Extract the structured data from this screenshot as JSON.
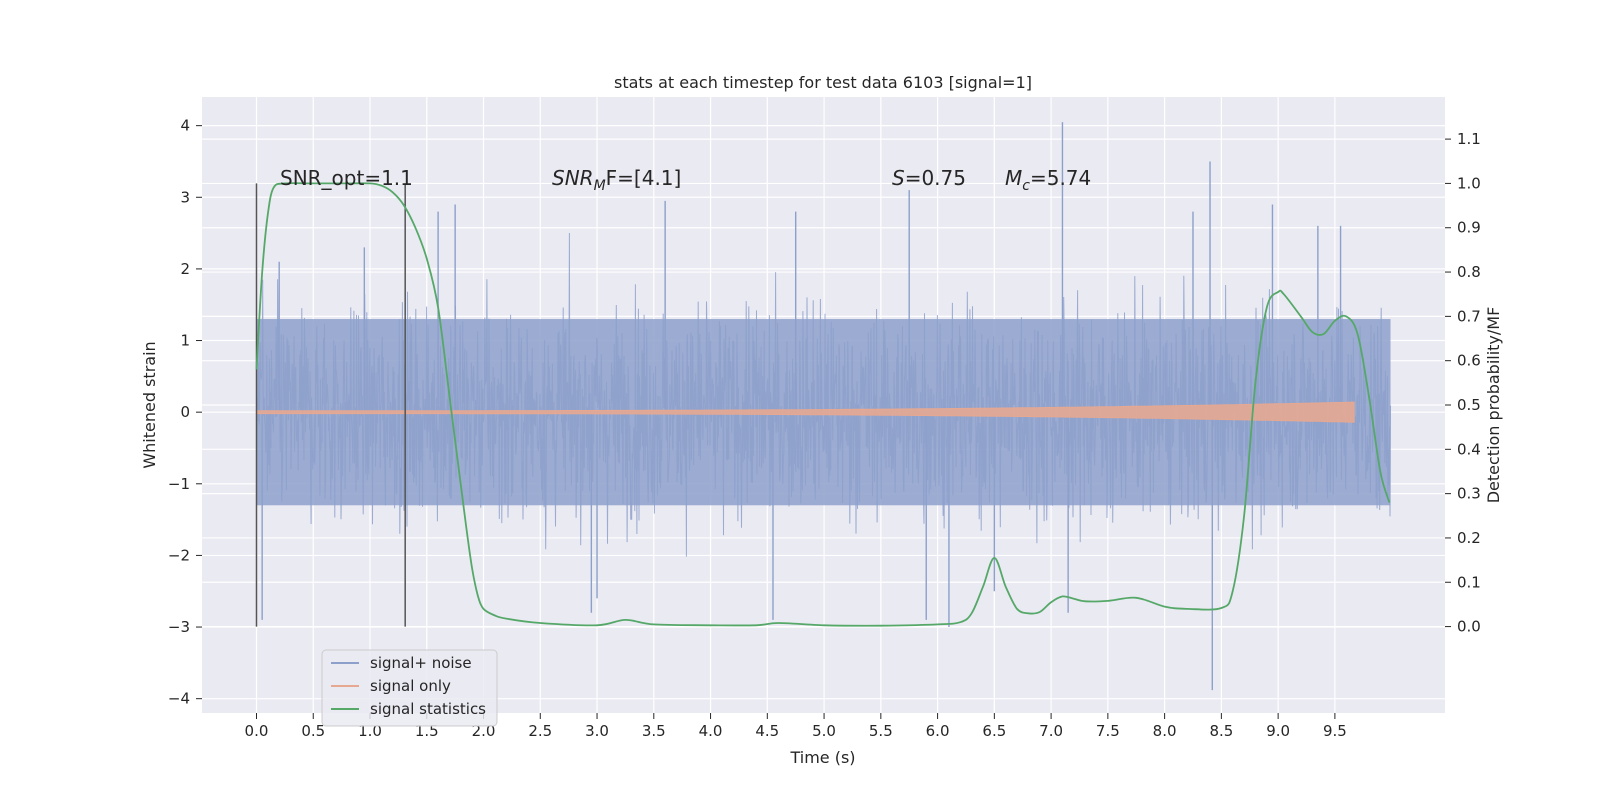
{
  "chart_data": {
    "type": "line",
    "title": "stats at each timestep for test data 6103 [signal=1]",
    "xlabel": "Time (s)",
    "ylabel_left": "Whitened strain",
    "ylabel_right": "Detection probability/MF",
    "xlim": [
      -0.48,
      10.47
    ],
    "ylim_left": [
      -4.2,
      4.4
    ],
    "ylim_right": [
      -0.195,
      1.195
    ],
    "x_ticks": [
      "0.0",
      "0.5",
      "1.0",
      "1.5",
      "2.0",
      "2.5",
      "3.0",
      "3.5",
      "4.0",
      "4.5",
      "5.0",
      "5.5",
      "6.0",
      "6.5",
      "7.0",
      "7.5",
      "8.0",
      "8.5",
      "9.0",
      "9.5"
    ],
    "y_left_ticks": [
      "4",
      "3",
      "2",
      "1",
      "0",
      "−1",
      "−2",
      "−3",
      "−4"
    ],
    "y_right_ticks": [
      "1.1",
      "1.0",
      "0.9",
      "0.8",
      "0.7",
      "0.6",
      "0.5",
      "0.4",
      "0.3",
      "0.2",
      "0.1",
      "0.0"
    ],
    "grid": true,
    "legend_position": "lower-left",
    "series": [
      {
        "name": "signal+ noise",
        "color": "#8da0cb",
        "axis": "left",
        "x_range": [
          0.0,
          9.99
        ],
        "typical_amplitude": 1.3,
        "peak_max": 4.05,
        "peak_min": -3.88
      },
      {
        "name": "signal only",
        "color": "#e6a891",
        "axis": "left",
        "x_range": [
          0.0,
          9.67
        ],
        "end_amplitude": 0.12
      },
      {
        "name": "signal statistics",
        "color": "#55a868",
        "axis": "right",
        "x": [
          0.0,
          0.05,
          0.1,
          0.15,
          0.25,
          0.5,
          0.8,
          1.0,
          1.1,
          1.2,
          1.3,
          1.4,
          1.5,
          1.6,
          1.7,
          1.75,
          1.8,
          1.85,
          1.9,
          1.95,
          2.0,
          2.1,
          2.2,
          2.5,
          3.0,
          3.25,
          3.5,
          4.0,
          4.4,
          4.6,
          5.0,
          5.5,
          6.0,
          6.2,
          6.3,
          6.4,
          6.5,
          6.6,
          6.7,
          6.8,
          6.9,
          7.0,
          7.1,
          7.2,
          7.3,
          7.5,
          7.75,
          8.0,
          8.2,
          8.5,
          8.6,
          8.7,
          8.8,
          8.9,
          9.0,
          9.05,
          9.2,
          9.3,
          9.4,
          9.5,
          9.6,
          9.7,
          9.8,
          9.9,
          9.98
        ],
        "y": [
          0.58,
          0.8,
          0.93,
          0.99,
          1.0,
          1.0,
          1.0,
          1.0,
          0.995,
          0.98,
          0.95,
          0.9,
          0.83,
          0.72,
          0.52,
          0.42,
          0.32,
          0.22,
          0.13,
          0.07,
          0.04,
          0.025,
          0.018,
          0.008,
          0.003,
          0.015,
          0.005,
          0.003,
          0.003,
          0.008,
          0.003,
          0.002,
          0.005,
          0.01,
          0.03,
          0.09,
          0.155,
          0.09,
          0.04,
          0.03,
          0.033,
          0.055,
          0.068,
          0.063,
          0.057,
          0.058,
          0.065,
          0.045,
          0.04,
          0.042,
          0.08,
          0.25,
          0.55,
          0.72,
          0.755,
          0.75,
          0.7,
          0.665,
          0.66,
          0.69,
          0.7,
          0.66,
          0.52,
          0.35,
          0.28
        ]
      }
    ],
    "vertical_lines": [
      0.0,
      1.31
    ],
    "annotations": {
      "snr_opt": "SNR_opt=1.1",
      "snr_mf_main": "SNR",
      "snr_mf_sub": "M",
      "snr_mf_rest": "F=[4.1]",
      "s_italic": "S",
      "s_value": "=0.75",
      "mc_main": "M",
      "mc_sub": "c",
      "mc_value": "=5.74"
    }
  }
}
